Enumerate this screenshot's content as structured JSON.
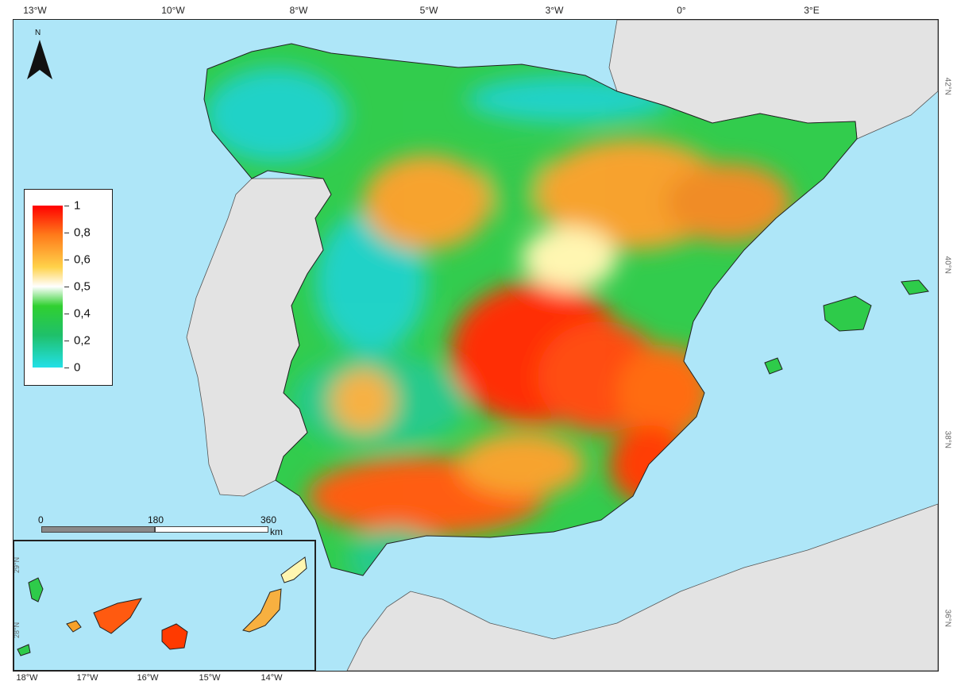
{
  "map": {
    "top_ticks": [
      "13°W",
      "10°W",
      "8°W",
      "5°W",
      "3°W",
      "0°",
      "3°E"
    ],
    "right_ticks": [
      "42°N",
      "40°N",
      "38°N",
      "36°N"
    ],
    "inset_bottom_ticks": [
      "18°W",
      "17°W",
      "16°W",
      "15°W",
      "14°W"
    ],
    "inset_left_ticks": [
      "29°N",
      "28°N"
    ],
    "north_label": "N",
    "legend": {
      "labels": [
        "1",
        "0,8",
        "0,6",
        "0,5",
        "0,4",
        "0,2",
        "0"
      ],
      "colors": [
        "#ff0000",
        "#ff7a1a",
        "#ffd24a",
        "#ffffff",
        "#30d030",
        "#1fc06a",
        "#22e0e8"
      ]
    },
    "scale": {
      "labels": [
        "0",
        "180",
        "360"
      ],
      "unit": "km"
    },
    "colors": {
      "sea": "#aee6f8",
      "land_gray": "#e3e3e3",
      "high": "#ff2a00",
      "mid_high": "#f7a12a",
      "mid": "#fff6b0",
      "low": "#2ecb4a",
      "very_low": "#1fd2c6"
    }
  }
}
